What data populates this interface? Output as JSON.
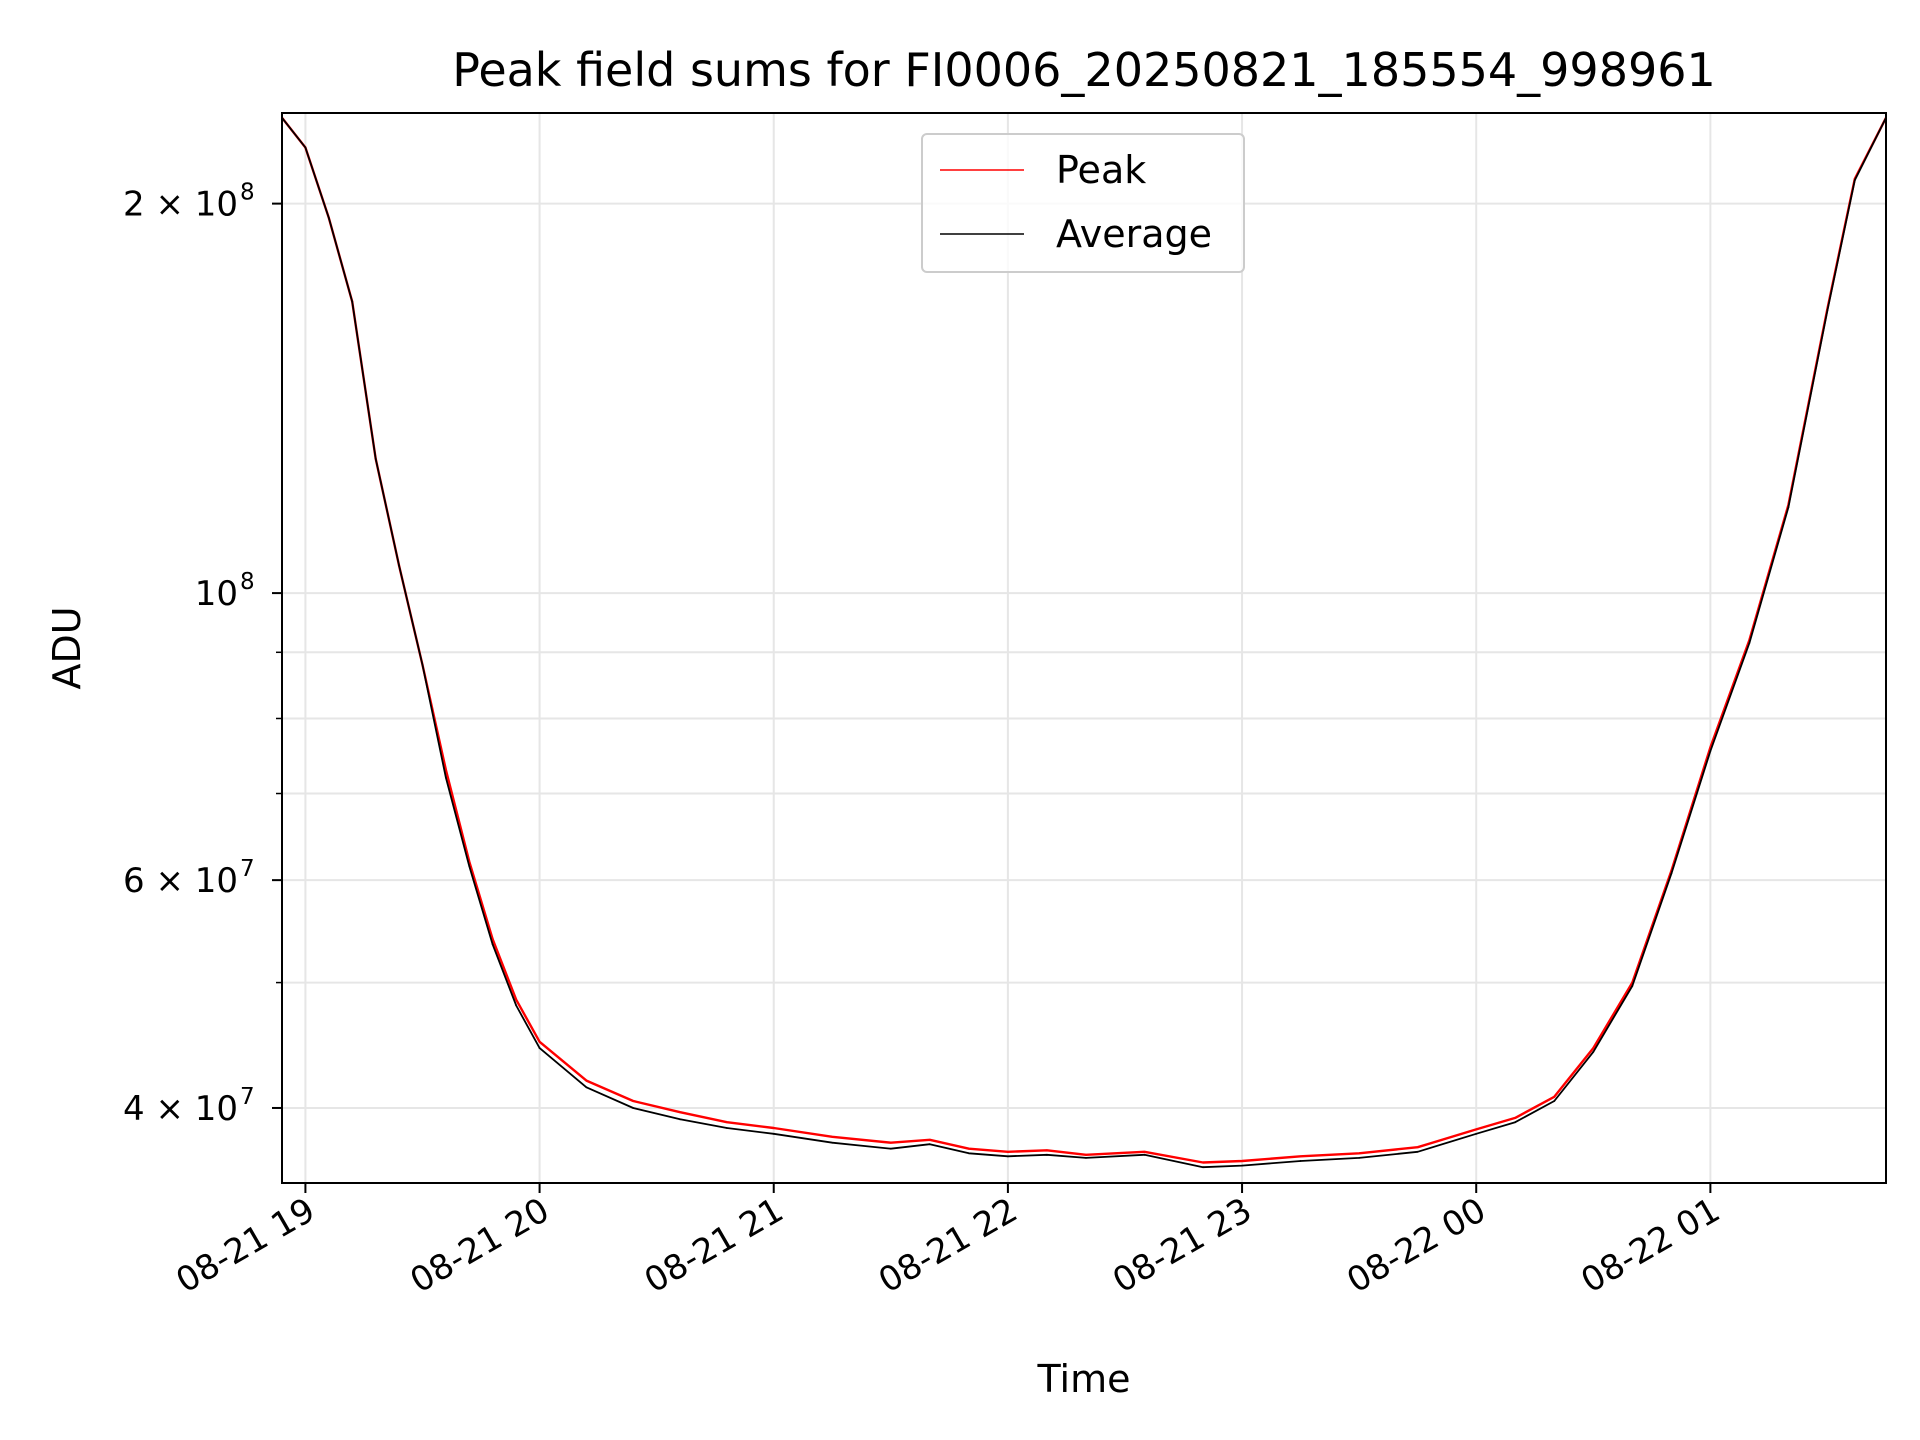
{
  "chart_data": {
    "type": "line",
    "title": "Peak field sums for FI0006_20250821_185554_998961",
    "xlabel": "Time",
    "ylabel": "ADU",
    "y_scale": "log",
    "ylim": [
      35000000,
      235000000
    ],
    "xlim": [
      "2025-08-21T18:54:00",
      "2025-08-22T01:45:00"
    ],
    "grid": true,
    "legend_position": "upper center",
    "x_tick_labels": [
      {
        "x": "2025-08-21T19:00:00",
        "label": "08-21 19"
      },
      {
        "x": "2025-08-21T20:00:00",
        "label": "08-21 20"
      },
      {
        "x": "2025-08-21T21:00:00",
        "label": "08-21 21"
      },
      {
        "x": "2025-08-21T22:00:00",
        "label": "08-21 22"
      },
      {
        "x": "2025-08-21T23:00:00",
        "label": "08-21 23"
      },
      {
        "x": "2025-08-22T00:00:00",
        "label": "08-22 00"
      },
      {
        "x": "2025-08-22T01:00:00",
        "label": "08-22 01"
      }
    ],
    "y_major_ticks": [
      {
        "value": 40000000,
        "mantissa": "4 × 10",
        "exponent": "7"
      },
      {
        "value": 60000000,
        "mantissa": "6 × 10",
        "exponent": "7"
      },
      {
        "value": 100000000,
        "mantissa": "10",
        "exponent": "8"
      },
      {
        "value": 200000000,
        "mantissa": "2 × 10",
        "exponent": "8"
      }
    ],
    "y_minor_ticks": [
      50000000,
      70000000,
      80000000,
      90000000
    ],
    "series": [
      {
        "name": "Peak",
        "color": "#ff0000",
        "x": [
          "2025-08-21T18:54:00",
          "2025-08-21T19:00:00",
          "2025-08-21T19:06:00",
          "2025-08-21T19:12:00",
          "2025-08-21T19:18:00",
          "2025-08-21T19:24:00",
          "2025-08-21T19:30:00",
          "2025-08-21T19:36:00",
          "2025-08-21T19:42:00",
          "2025-08-21T19:48:00",
          "2025-08-21T19:54:00",
          "2025-08-21T20:00:00",
          "2025-08-21T20:12:00",
          "2025-08-21T20:24:00",
          "2025-08-21T20:36:00",
          "2025-08-21T20:48:00",
          "2025-08-21T21:00:00",
          "2025-08-21T21:15:00",
          "2025-08-21T21:30:00",
          "2025-08-21T21:40:00",
          "2025-08-21T21:50:00",
          "2025-08-21T22:00:00",
          "2025-08-21T22:10:00",
          "2025-08-21T22:20:00",
          "2025-08-21T22:35:00",
          "2025-08-21T22:50:00",
          "2025-08-21T23:00:00",
          "2025-08-21T23:15:00",
          "2025-08-21T23:30:00",
          "2025-08-21T23:45:00",
          "2025-08-22T00:00:00",
          "2025-08-22T00:10:00",
          "2025-08-22T00:20:00",
          "2025-08-22T00:30:00",
          "2025-08-22T00:40:00",
          "2025-08-22T00:50:00",
          "2025-08-22T01:00:00",
          "2025-08-22T01:10:00",
          "2025-08-22T01:20:00",
          "2025-08-22T01:30:00",
          "2025-08-22T01:37:00",
          "2025-08-22T01:45:00"
        ],
        "values": [
          233000000,
          221000000,
          195000000,
          168000000,
          127000000,
          105000000,
          88000000,
          73000000,
          62000000,
          54000000,
          48500000,
          45000000,
          42000000,
          40500000,
          39700000,
          39000000,
          38600000,
          38000000,
          37600000,
          37800000,
          37200000,
          37000000,
          37100000,
          36800000,
          37000000,
          36300000,
          36400000,
          36700000,
          36900000,
          37300000,
          38500000,
          39300000,
          40800000,
          44500000,
          50000000,
          61000000,
          76000000,
          92000000,
          117000000,
          166000000,
          209000000,
          233000000
        ]
      },
      {
        "name": "Average",
        "color": "#000000",
        "x": [
          "2025-08-21T18:54:00",
          "2025-08-21T19:00:00",
          "2025-08-21T19:06:00",
          "2025-08-21T19:12:00",
          "2025-08-21T19:18:00",
          "2025-08-21T19:24:00",
          "2025-08-21T19:30:00",
          "2025-08-21T19:36:00",
          "2025-08-21T19:42:00",
          "2025-08-21T19:48:00",
          "2025-08-21T19:54:00",
          "2025-08-21T20:00:00",
          "2025-08-21T20:12:00",
          "2025-08-21T20:24:00",
          "2025-08-21T20:36:00",
          "2025-08-21T20:48:00",
          "2025-08-21T21:00:00",
          "2025-08-21T21:15:00",
          "2025-08-21T21:30:00",
          "2025-08-21T21:40:00",
          "2025-08-21T21:50:00",
          "2025-08-21T22:00:00",
          "2025-08-21T22:10:00",
          "2025-08-21T22:20:00",
          "2025-08-21T22:35:00",
          "2025-08-21T22:50:00",
          "2025-08-21T23:00:00",
          "2025-08-21T23:15:00",
          "2025-08-21T23:30:00",
          "2025-08-21T23:45:00",
          "2025-08-22T00:00:00",
          "2025-08-22T00:10:00",
          "2025-08-22T00:20:00",
          "2025-08-22T00:30:00",
          "2025-08-22T00:40:00",
          "2025-08-22T00:50:00",
          "2025-08-22T01:00:00",
          "2025-08-22T01:10:00",
          "2025-08-22T01:20:00",
          "2025-08-22T01:30:00",
          "2025-08-22T01:37:00",
          "2025-08-22T01:45:00"
        ],
        "values": [
          233000000,
          221000000,
          195000000,
          168000000,
          127000000,
          105000000,
          88000000,
          72000000,
          61500000,
          53500000,
          48000000,
          44500000,
          41500000,
          40000000,
          39200000,
          38600000,
          38200000,
          37600000,
          37200000,
          37500000,
          36900000,
          36700000,
          36800000,
          36600000,
          36800000,
          36000000,
          36100000,
          36400000,
          36600000,
          37000000,
          38200000,
          39000000,
          40500000,
          44200000,
          49700000,
          60700000,
          75500000,
          91500000,
          116500000,
          165500000,
          208500000,
          233000000
        ]
      }
    ]
  }
}
